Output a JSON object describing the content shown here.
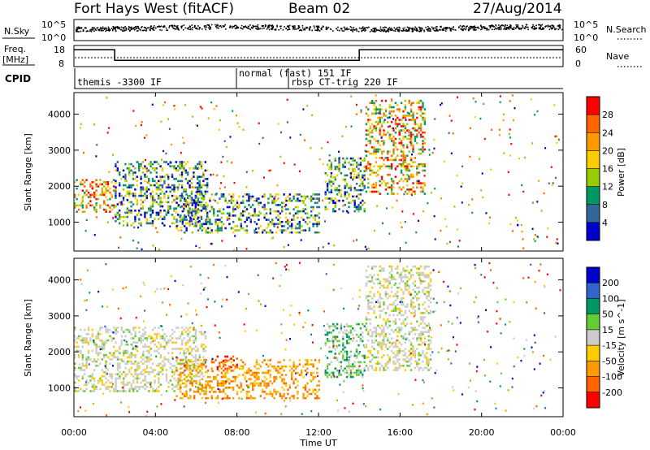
{
  "header": {
    "station": "Fort Hays West (fitACF)",
    "beam": "Beam 02",
    "date": "27/Aug/2014"
  },
  "noise_panel": {
    "left_label": "N.Sky",
    "right_label": "N.Search",
    "left_ticks": [
      "10^5",
      "10^0"
    ],
    "right_ticks": [
      "10^5",
      "10^0"
    ]
  },
  "freq_panel": {
    "left_label_line1": "Freq.",
    "left_label_line2": "[MHz]",
    "right_label": "Nave",
    "left_ticks": [
      "18",
      "8"
    ],
    "right_ticks": [
      "60",
      "0"
    ],
    "freq_steps": [
      {
        "t": 0.0,
        "mhz": 16
      },
      {
        "t": 2.0,
        "mhz": 11
      },
      {
        "t": 14.0,
        "mhz": 16
      },
      {
        "t": 24.0,
        "mhz": 16
      }
    ]
  },
  "cpid": {
    "label": "CPID",
    "segments": [
      {
        "start": 0.0,
        "name": "themis -3300 IF"
      },
      {
        "start": 8.0,
        "name": "normal (fast) 151 IF"
      },
      {
        "start": 10.5,
        "name": "rbsp CT-trig 220 IF"
      }
    ]
  },
  "chart_data": [
    {
      "type": "heatmap",
      "quantity": "power",
      "ylabel": "Slant Range [km]",
      "ylim": [
        200,
        4600
      ],
      "y_ticks": [
        1000,
        2000,
        3000,
        4000
      ],
      "xlim": [
        0,
        24
      ],
      "colorbar": {
        "label": "Power [dB]",
        "ticks": [
          "28",
          "24",
          "20",
          "16",
          "12",
          "8",
          "4"
        ],
        "colors": [
          "#ff0000",
          "#ff6600",
          "#ff9900",
          "#ffcc00",
          "#99cc00",
          "#009966",
          "#336699",
          "#0000cc"
        ]
      },
      "echo_regions": [
        {
          "t_start": 0.0,
          "t_end": 2.0,
          "r_low": 1300,
          "r_high": 2200,
          "level": "strong"
        },
        {
          "t_start": 2.0,
          "t_end": 6.5,
          "r_low": 900,
          "r_high": 2700,
          "level": "moderate"
        },
        {
          "t_start": 5.0,
          "t_end": 12.0,
          "r_low": 700,
          "r_high": 1800,
          "level": "moderate"
        },
        {
          "t_start": 12.3,
          "t_end": 14.3,
          "r_low": 1300,
          "r_high": 2800,
          "level": "moderate"
        },
        {
          "t_start": 14.3,
          "t_end": 17.2,
          "r_low": 1800,
          "r_high": 4400,
          "level": "strong"
        }
      ]
    },
    {
      "type": "heatmap",
      "quantity": "velocity",
      "ylabel": "Slant Range [km]",
      "ylim": [
        200,
        4600
      ],
      "y_ticks": [
        1000,
        2000,
        3000,
        4000
      ],
      "xlim": [
        0,
        24
      ],
      "colorbar": {
        "label": "Velocity [m s^-1]",
        "ticks": [
          "200",
          "100",
          "50",
          "15",
          "-15",
          "-50",
          "-100",
          "-200"
        ],
        "colors": [
          "#0000cc",
          "#3366cc",
          "#009966",
          "#66cc33",
          "#cccccc",
          "#ffcc00",
          "#ff9900",
          "#ff6600",
          "#ff0000"
        ]
      },
      "echo_regions": [
        {
          "t_start": 0.0,
          "t_end": 6.5,
          "r_low": 900,
          "r_high": 2700,
          "velocity": "near zero"
        },
        {
          "t_start": 5.0,
          "t_end": 12.0,
          "r_low": 700,
          "r_high": 1800,
          "velocity": "negative"
        },
        {
          "t_start": 7.0,
          "t_end": 8.0,
          "r_low": 1500,
          "r_high": 1900,
          "velocity": "strongly negative"
        },
        {
          "t_start": 12.3,
          "t_end": 14.3,
          "r_low": 1300,
          "r_high": 2800,
          "velocity": "positive"
        },
        {
          "t_start": 14.3,
          "t_end": 17.5,
          "r_low": 1500,
          "r_high": 4400,
          "velocity": "near zero"
        }
      ]
    }
  ],
  "x_axis": {
    "label": "Time UT",
    "ticks": [
      "00:00",
      "04:00",
      "08:00",
      "12:00",
      "16:00",
      "20:00",
      "00:00"
    ]
  }
}
